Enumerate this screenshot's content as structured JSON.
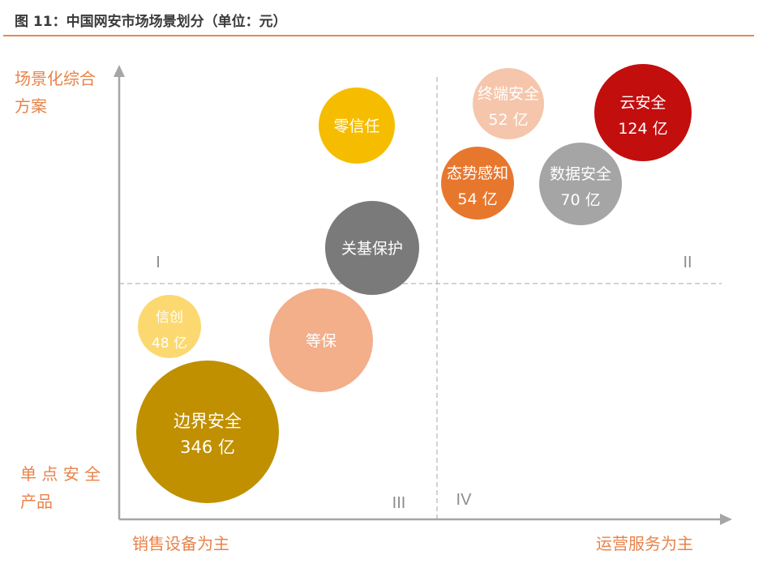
{
  "title": "图 11：中国网安市场场景划分（单位：元）",
  "colors": {
    "accent": "#E38B4F",
    "axis": "#A6A6A6",
    "label": "#E8834A"
  },
  "chart_data": {
    "type": "bubble-quadrant",
    "y_axis": {
      "top_label": [
        "场景化综合",
        "方案"
      ],
      "bottom_label": [
        "单 点 安 全",
        "产品"
      ]
    },
    "x_axis": {
      "left_label": "销售设备为主",
      "right_label": "运营服务为主"
    },
    "quadrants": [
      "I",
      "II",
      "III",
      "IV"
    ],
    "grid": false,
    "bubbles": [
      {
        "name": "零信任",
        "value_label": "",
        "color": "#F6BD00"
      },
      {
        "name": "终端安全",
        "value_label": "52 亿",
        "value": 52,
        "color": "#F5C6AB"
      },
      {
        "name": "云安全",
        "value_label": "124 亿",
        "value": 124,
        "color": "#C30E0E"
      },
      {
        "name": "态势感知",
        "value_label": "54 亿",
        "value": 54,
        "color": "#E8772E"
      },
      {
        "name": "数据安全",
        "value_label": "70 亿",
        "value": 70,
        "color": "#A5A5A5"
      },
      {
        "name": "关基保护",
        "value_label": "",
        "color": "#7A7A7A"
      },
      {
        "name": "信创",
        "value_label": "48 亿",
        "value": 48,
        "color": "#FBD970"
      },
      {
        "name": "等保",
        "value_label": "",
        "color": "#F3AE8A"
      },
      {
        "name": "边界安全",
        "value_label": "346 亿",
        "value": 346,
        "color": "#C09000"
      }
    ]
  }
}
